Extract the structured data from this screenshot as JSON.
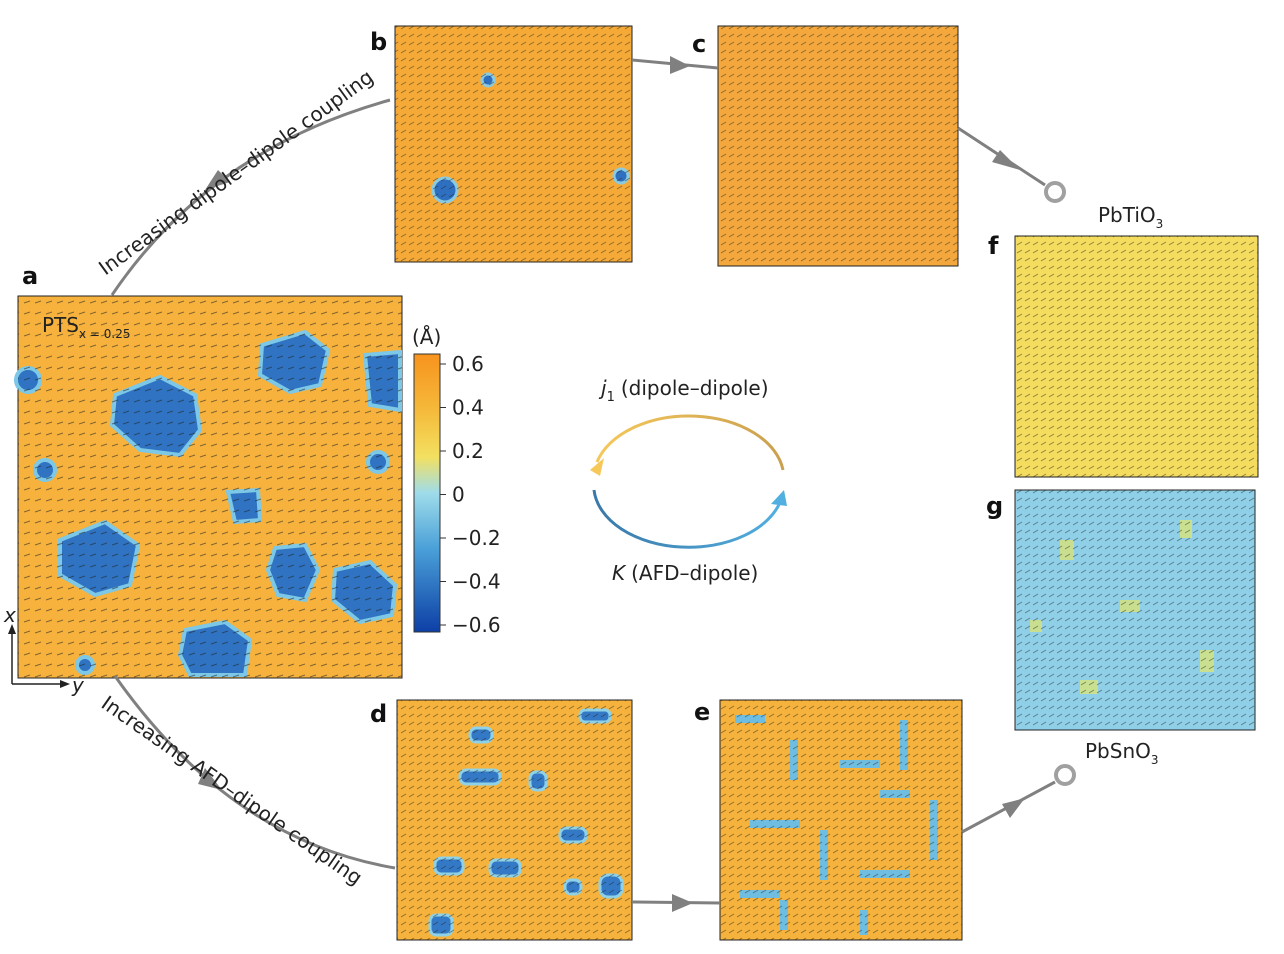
{
  "panel_labels": [
    "a",
    "b",
    "c",
    "d",
    "e",
    "f",
    "g"
  ],
  "panel_a_label": {
    "text": "PTS",
    "subscript": "x = 0.25"
  },
  "arrows": {
    "top": "Increasing dipole–dipole coupling",
    "bottom": "Increasing AFD–dipole coupling"
  },
  "materials": [
    {
      "text": "PbTiO",
      "subscript": "3"
    },
    {
      "text": "PbSnO",
      "subscript": "3"
    }
  ],
  "colorbar": {
    "unit": "(Å)",
    "ticks": [
      "0.6",
      "0.4",
      "0.2",
      "0",
      "−0.2",
      "−0.4",
      "−0.6"
    ]
  },
  "cycle": {
    "upper": {
      "symbol": "j",
      "subscript": "1",
      "text": "(dipole–dipole)"
    },
    "lower": {
      "symbol": "K",
      "text": "(AFD–dipole)"
    }
  },
  "axes": {
    "x": "x",
    "y": "y"
  }
}
